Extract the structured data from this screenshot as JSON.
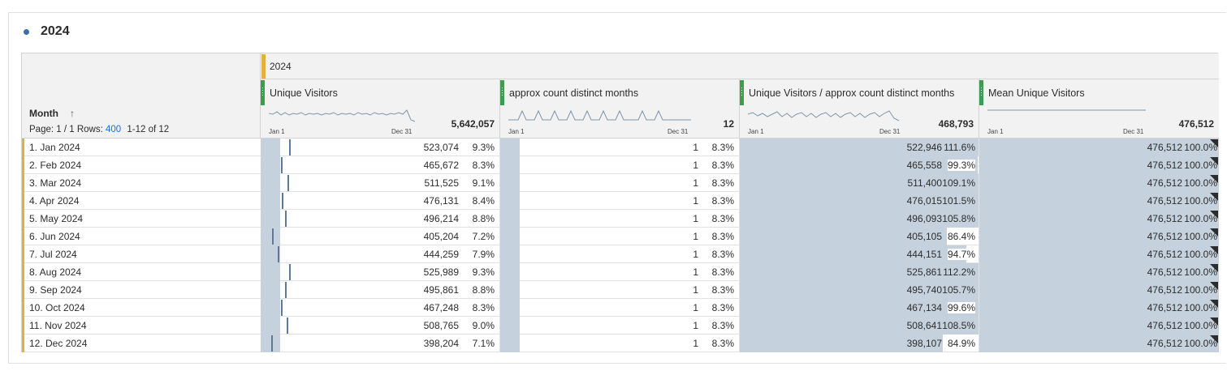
{
  "panel": {
    "title": "2024"
  },
  "table": {
    "dimension": {
      "title": "Month",
      "sort_icon": "arrow-up-icon"
    },
    "pager": {
      "page_text": "Page: 1 / 1",
      "rows_label": "Rows:",
      "rows_value": "400",
      "range_text": "1-12 of 12"
    },
    "group_header": "2024",
    "metrics": [
      {
        "label": "Unique Visitors",
        "total": "5,642,057",
        "spark_start": "Jan 1",
        "spark_end": "Dec 31"
      },
      {
        "label": "approx count distinct months",
        "total": "12",
        "spark_start": "Jan 1",
        "spark_end": "Dec 31"
      },
      {
        "label": "Unique Visitors / approx count distinct months",
        "total": "468,793",
        "spark_start": "Jan 1",
        "spark_end": "Dec 31"
      },
      {
        "label": "Mean Unique Visitors",
        "total": "476,512",
        "spark_start": "Jan 1",
        "spark_end": "Dec 31"
      }
    ],
    "rows": [
      {
        "label": "1.  Jan 2024",
        "uv": "523,074",
        "uv_pct": "9.3%",
        "acdm": "1",
        "acdm_pct": "8.3%",
        "ratio": "522,946",
        "ratio_pct": "111.6%",
        "mean": "476,512",
        "mean_pct": "100.0%",
        "uv_share": 0.093,
        "ratio_share": 1.116
      },
      {
        "label": "2.  Feb 2024",
        "uv": "465,672",
        "uv_pct": "8.3%",
        "acdm": "1",
        "acdm_pct": "8.3%",
        "ratio": "465,558",
        "ratio_pct": "99.3%",
        "mean": "476,512",
        "mean_pct": "100.0%",
        "uv_share": 0.083,
        "ratio_share": 0.993
      },
      {
        "label": "3.  Mar 2024",
        "uv": "511,525",
        "uv_pct": "9.1%",
        "acdm": "1",
        "acdm_pct": "8.3%",
        "ratio": "511,400",
        "ratio_pct": "109.1%",
        "mean": "476,512",
        "mean_pct": "100.0%",
        "uv_share": 0.091,
        "ratio_share": 1.091
      },
      {
        "label": "4.  Apr 2024",
        "uv": "476,131",
        "uv_pct": "8.4%",
        "acdm": "1",
        "acdm_pct": "8.3%",
        "ratio": "476,015",
        "ratio_pct": "101.5%",
        "mean": "476,512",
        "mean_pct": "100.0%",
        "uv_share": 0.084,
        "ratio_share": 1.015
      },
      {
        "label": "5.  May 2024",
        "uv": "496,214",
        "uv_pct": "8.8%",
        "acdm": "1",
        "acdm_pct": "8.3%",
        "ratio": "496,093",
        "ratio_pct": "105.8%",
        "mean": "476,512",
        "mean_pct": "100.0%",
        "uv_share": 0.088,
        "ratio_share": 1.058
      },
      {
        "label": "6.  Jun 2024",
        "uv": "405,204",
        "uv_pct": "7.2%",
        "acdm": "1",
        "acdm_pct": "8.3%",
        "ratio": "405,105",
        "ratio_pct": "86.4%",
        "mean": "476,512",
        "mean_pct": "100.0%",
        "uv_share": 0.072,
        "ratio_share": 0.864
      },
      {
        "label": "7.  Jul 2024",
        "uv": "444,259",
        "uv_pct": "7.9%",
        "acdm": "1",
        "acdm_pct": "8.3%",
        "ratio": "444,151",
        "ratio_pct": "94.7%",
        "mean": "476,512",
        "mean_pct": "100.0%",
        "uv_share": 0.079,
        "ratio_share": 0.947
      },
      {
        "label": "8.  Aug 2024",
        "uv": "525,989",
        "uv_pct": "9.3%",
        "acdm": "1",
        "acdm_pct": "8.3%",
        "ratio": "525,861",
        "ratio_pct": "112.2%",
        "mean": "476,512",
        "mean_pct": "100.0%",
        "uv_share": 0.093,
        "ratio_share": 1.122
      },
      {
        "label": "9.  Sep 2024",
        "uv": "495,861",
        "uv_pct": "8.8%",
        "acdm": "1",
        "acdm_pct": "8.3%",
        "ratio": "495,740",
        "ratio_pct": "105.7%",
        "mean": "476,512",
        "mean_pct": "100.0%",
        "uv_share": 0.088,
        "ratio_share": 1.057
      },
      {
        "label": "10.  Oct 2024",
        "uv": "467,248",
        "uv_pct": "8.3%",
        "acdm": "1",
        "acdm_pct": "8.3%",
        "ratio": "467,134",
        "ratio_pct": "99.6%",
        "mean": "476,512",
        "mean_pct": "100.0%",
        "uv_share": 0.083,
        "ratio_share": 0.996
      },
      {
        "label": "11.  Nov 2024",
        "uv": "508,765",
        "uv_pct": "9.0%",
        "acdm": "1",
        "acdm_pct": "8.3%",
        "ratio": "508,641",
        "ratio_pct": "108.5%",
        "mean": "476,512",
        "mean_pct": "100.0%",
        "uv_share": 0.09,
        "ratio_share": 1.085
      },
      {
        "label": "12.  Dec 2024",
        "uv": "398,204",
        "uv_pct": "7.1%",
        "acdm": "1",
        "acdm_pct": "8.3%",
        "ratio": "398,107",
        "ratio_pct": "84.9%",
        "mean": "476,512",
        "mean_pct": "100.0%",
        "uv_share": 0.071,
        "ratio_share": 0.849
      }
    ]
  },
  "colors": {
    "bar": "#c5d1dc",
    "tick": "#5c7b98",
    "segment": "#e2b13c",
    "metric": "#3d9d4e",
    "link": "#1473e6"
  }
}
